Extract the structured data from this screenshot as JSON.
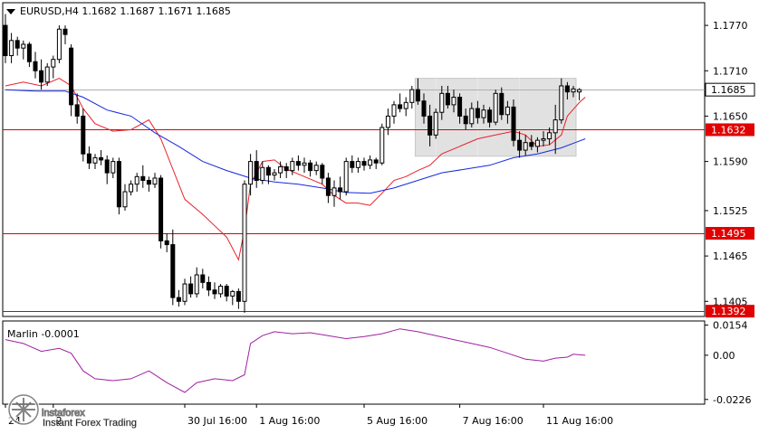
{
  "chart_data": {
    "type": "candlestick",
    "symbol_line": "EURUSD,H4  1.1682 1.1687 1.1671 1.1685",
    "price_axis": {
      "range": [
        1.1385,
        1.18
      ],
      "ticks": [
        "1.1770",
        "1.1710",
        "1.1650",
        "1.1590",
        "1.1525",
        "1.1465",
        "1.1405"
      ]
    },
    "levels": [
      {
        "value": 1.1632,
        "label": "1.1632",
        "color": "#e00000"
      },
      {
        "value": 1.1495,
        "label": "1.1495",
        "color": "#e00000"
      },
      {
        "value": 1.1392,
        "label": "1.1392",
        "color": "#e00000"
      }
    ],
    "current_price": {
      "value": 1.1685,
      "label": "1.1685"
    },
    "range_box": {
      "from_bar": 69,
      "to_bar": 95,
      "top": 1.17,
      "bottom": 1.1597,
      "color": "#d0d0d0"
    },
    "candles": [
      [
        1.177,
        1.1785,
        1.172,
        1.173
      ],
      [
        1.173,
        1.176,
        1.172,
        1.175
      ],
      [
        1.175,
        1.1755,
        1.173,
        1.174
      ],
      [
        1.174,
        1.175,
        1.1725,
        1.1745
      ],
      [
        1.1745,
        1.1748,
        1.1715,
        1.1722
      ],
      [
        1.1722,
        1.1735,
        1.17,
        1.171
      ],
      [
        1.171,
        1.1725,
        1.1685,
        1.1695
      ],
      [
        1.1695,
        1.172,
        1.169,
        1.1715
      ],
      [
        1.1715,
        1.173,
        1.17,
        1.1725
      ],
      [
        1.1725,
        1.177,
        1.172,
        1.1765
      ],
      [
        1.1765,
        1.177,
        1.1745,
        1.1758
      ],
      [
        1.174,
        1.1745,
        1.165,
        1.1665
      ],
      [
        1.1665,
        1.168,
        1.164,
        1.165
      ],
      [
        1.165,
        1.166,
        1.159,
        1.16
      ],
      [
        1.16,
        1.161,
        1.158,
        1.1588
      ],
      [
        1.1588,
        1.16,
        1.158,
        1.1595
      ],
      [
        1.1595,
        1.1605,
        1.1585,
        1.1592
      ],
      [
        1.1592,
        1.1598,
        1.156,
        1.1575
      ],
      [
        1.1575,
        1.1595,
        1.1568,
        1.159
      ],
      [
        1.159,
        1.1595,
        1.152,
        1.153
      ],
      [
        1.153,
        1.156,
        1.1525,
        1.155
      ],
      [
        1.155,
        1.1565,
        1.1545,
        1.156
      ],
      [
        1.156,
        1.1575,
        1.155,
        1.157
      ],
      [
        1.157,
        1.1585,
        1.1555,
        1.1565
      ],
      [
        1.1565,
        1.157,
        1.155,
        1.156
      ],
      [
        1.156,
        1.1575,
        1.1555,
        1.1568
      ],
      [
        1.1568,
        1.1572,
        1.1475,
        1.1485
      ],
      [
        1.1485,
        1.1495,
        1.147,
        1.148
      ],
      [
        1.148,
        1.15,
        1.14,
        1.141
      ],
      [
        1.141,
        1.142,
        1.1398,
        1.1405
      ],
      [
        1.1405,
        1.1435,
        1.14,
        1.1428
      ],
      [
        1.1428,
        1.1438,
        1.141,
        1.1415
      ],
      [
        1.1415,
        1.145,
        1.141,
        1.144
      ],
      [
        1.144,
        1.1448,
        1.1422,
        1.143
      ],
      [
        1.143,
        1.1438,
        1.1412,
        1.142
      ],
      [
        1.142,
        1.143,
        1.1408,
        1.1415
      ],
      [
        1.1415,
        1.1428,
        1.141,
        1.1425
      ],
      [
        1.1425,
        1.1428,
        1.1405,
        1.1412
      ],
      [
        1.1412,
        1.142,
        1.14,
        1.1418
      ],
      [
        1.1418,
        1.1422,
        1.1395,
        1.1405
      ],
      [
        1.1405,
        1.1565,
        1.139,
        1.156
      ],
      [
        1.156,
        1.16,
        1.1545,
        1.159
      ],
      [
        1.159,
        1.1605,
        1.1555,
        1.1565
      ],
      [
        1.1565,
        1.159,
        1.156,
        1.1582
      ],
      [
        1.1582,
        1.1585,
        1.156,
        1.1572
      ],
      [
        1.1572,
        1.158,
        1.1565,
        1.1575
      ],
      [
        1.1575,
        1.159,
        1.1568,
        1.1583
      ],
      [
        1.1583,
        1.1588,
        1.1568,
        1.1578
      ],
      [
        1.1578,
        1.1595,
        1.1572,
        1.159
      ],
      [
        1.159,
        1.1598,
        1.1578,
        1.1585
      ],
      [
        1.1585,
        1.1595,
        1.1575,
        1.1588
      ],
      [
        1.1588,
        1.1592,
        1.157,
        1.1578
      ],
      [
        1.1578,
        1.159,
        1.1572,
        1.1585
      ],
      [
        1.1585,
        1.1588,
        1.156,
        1.1568
      ],
      [
        1.1568,
        1.1575,
        1.1535,
        1.1545
      ],
      [
        1.1545,
        1.1565,
        1.153,
        1.1555
      ],
      [
        1.1555,
        1.157,
        1.154,
        1.155
      ],
      [
        1.155,
        1.1595,
        1.1545,
        1.159
      ],
      [
        1.159,
        1.1598,
        1.1575,
        1.1582
      ],
      [
        1.1582,
        1.1595,
        1.1575,
        1.159
      ],
      [
        1.159,
        1.1595,
        1.1578,
        1.1585
      ],
      [
        1.1585,
        1.1598,
        1.158,
        1.1592
      ],
      [
        1.1592,
        1.1595,
        1.158,
        1.1588
      ],
      [
        1.1588,
        1.164,
        1.1585,
        1.1635
      ],
      [
        1.1635,
        1.166,
        1.1625,
        1.165
      ],
      [
        1.165,
        1.167,
        1.164,
        1.1665
      ],
      [
        1.1665,
        1.168,
        1.1655,
        1.166
      ],
      [
        1.166,
        1.1675,
        1.165,
        1.1668
      ],
      [
        1.1668,
        1.169,
        1.166,
        1.1685
      ],
      [
        1.1685,
        1.17,
        1.1665,
        1.167
      ],
      [
        1.167,
        1.168,
        1.164,
        1.165
      ],
      [
        1.165,
        1.1665,
        1.161,
        1.1625
      ],
      [
        1.1625,
        1.166,
        1.162,
        1.1655
      ],
      [
        1.1655,
        1.169,
        1.1645,
        1.168
      ],
      [
        1.168,
        1.169,
        1.166,
        1.1665
      ],
      [
        1.1665,
        1.1685,
        1.1655,
        1.1675
      ],
      [
        1.1675,
        1.168,
        1.164,
        1.165
      ],
      [
        1.165,
        1.166,
        1.1632,
        1.164
      ],
      [
        1.164,
        1.1668,
        1.1635,
        1.166
      ],
      [
        1.166,
        1.167,
        1.164,
        1.1648
      ],
      [
        1.1648,
        1.1665,
        1.164,
        1.1658
      ],
      [
        1.1658,
        1.1662,
        1.1635,
        1.1642
      ],
      [
        1.1642,
        1.1685,
        1.1638,
        1.168
      ],
      [
        1.168,
        1.1688,
        1.1645,
        1.1652
      ],
      [
        1.1652,
        1.167,
        1.164,
        1.1662
      ],
      [
        1.1662,
        1.1672,
        1.161,
        1.1618
      ],
      [
        1.1618,
        1.163,
        1.1595,
        1.1605
      ],
      [
        1.1605,
        1.1625,
        1.1598,
        1.1615
      ],
      [
        1.1615,
        1.1625,
        1.1605,
        1.161
      ],
      [
        1.161,
        1.1622,
        1.1602,
        1.1618
      ],
      [
        1.1618,
        1.163,
        1.161,
        1.162
      ],
      [
        1.162,
        1.1635,
        1.1612,
        1.1628
      ],
      [
        1.1628,
        1.1665,
        1.16,
        1.1645
      ],
      [
        1.1645,
        1.17,
        1.164,
        1.169
      ],
      [
        1.169,
        1.1695,
        1.1672,
        1.1682
      ],
      [
        1.1682,
        1.169,
        1.1675,
        1.1686
      ],
      [
        1.1682,
        1.1687,
        1.1671,
        1.1685
      ]
    ],
    "ma_fast": {
      "color": "#e8202a",
      "points": [
        [
          0,
          1.169
        ],
        [
          3,
          1.1695
        ],
        [
          6,
          1.169
        ],
        [
          9,
          1.17
        ],
        [
          11,
          1.169
        ],
        [
          13,
          1.166
        ],
        [
          15,
          1.164
        ],
        [
          18,
          1.163
        ],
        [
          21,
          1.1632
        ],
        [
          24,
          1.1645
        ],
        [
          26,
          1.162
        ],
        [
          28,
          1.158
        ],
        [
          30,
          1.154
        ],
        [
          33,
          1.152
        ],
        [
          35,
          1.1505
        ],
        [
          37,
          1.149
        ],
        [
          39,
          1.146
        ],
        [
          40,
          1.15
        ],
        [
          41,
          1.156
        ],
        [
          43,
          1.159
        ],
        [
          45,
          1.1592
        ],
        [
          47,
          1.158
        ],
        [
          50,
          1.157
        ],
        [
          53,
          1.156
        ],
        [
          55,
          1.1545
        ],
        [
          57,
          1.1535
        ],
        [
          59,
          1.1535
        ],
        [
          61,
          1.1532
        ],
        [
          63,
          1.1548
        ],
        [
          65,
          1.1565
        ],
        [
          67,
          1.157
        ],
        [
          69,
          1.1578
        ],
        [
          71,
          1.1585
        ],
        [
          73,
          1.16
        ],
        [
          76,
          1.161
        ],
        [
          79,
          1.162
        ],
        [
          82,
          1.1625
        ],
        [
          85,
          1.163
        ],
        [
          87,
          1.1625
        ],
        [
          89,
          1.161
        ],
        [
          91,
          1.1612
        ],
        [
          93,
          1.1625
        ],
        [
          94,
          1.165
        ],
        [
          96,
          1.1668
        ],
        [
          97,
          1.1675
        ]
      ]
    },
    "ma_slow": {
      "color": "#1428e0",
      "points": [
        [
          0,
          1.1685
        ],
        [
          5,
          1.1683
        ],
        [
          10,
          1.1683
        ],
        [
          13,
          1.1675
        ],
        [
          17,
          1.1658
        ],
        [
          21,
          1.165
        ],
        [
          25,
          1.1628
        ],
        [
          29,
          1.161
        ],
        [
          33,
          1.159
        ],
        [
          37,
          1.1578
        ],
        [
          41,
          1.1568
        ],
        [
          45,
          1.1563
        ],
        [
          49,
          1.156
        ],
        [
          53,
          1.1555
        ],
        [
          57,
          1.1549
        ],
        [
          61,
          1.1548
        ],
        [
          65,
          1.1555
        ],
        [
          69,
          1.1565
        ],
        [
          73,
          1.1575
        ],
        [
          77,
          1.158
        ],
        [
          81,
          1.1585
        ],
        [
          85,
          1.1595
        ],
        [
          89,
          1.16
        ],
        [
          93,
          1.1608
        ],
        [
          97,
          1.162
        ]
      ]
    },
    "x_labels": [
      {
        "bar": 0,
        "label": "24"
      },
      {
        "bar": 8,
        "label": "2"
      },
      {
        "bar": 30,
        "label": "30 Jul 16:00"
      },
      {
        "bar": 42,
        "label": "1 Aug 16:00"
      },
      {
        "bar": 60,
        "label": "5 Aug 16:00"
      },
      {
        "bar": 76,
        "label": "7 Aug 16:00"
      },
      {
        "bar": 90,
        "label": "11 Aug 16:00"
      }
    ],
    "indicator": {
      "name_line": "Marlin -0.0001",
      "range": [
        -0.025,
        0.0175
      ],
      "ticks": [
        {
          "value": 0.0154,
          "label": "0.0154"
        },
        {
          "value": 0.0,
          "label": "0.00"
        },
        {
          "value": -0.0226,
          "label": "-0.0226"
        }
      ],
      "color": "#a020a0",
      "points": [
        [
          0,
          0.008
        ],
        [
          3,
          0.006
        ],
        [
          6,
          0.002
        ],
        [
          9,
          0.0035
        ],
        [
          11,
          0.001
        ],
        [
          13,
          -0.008
        ],
        [
          15,
          -0.012
        ],
        [
          18,
          -0.013
        ],
        [
          21,
          -0.012
        ],
        [
          24,
          -0.008
        ],
        [
          27,
          -0.014
        ],
        [
          30,
          -0.019
        ],
        [
          32,
          -0.014
        ],
        [
          35,
          -0.012
        ],
        [
          38,
          -0.013
        ],
        [
          40,
          -0.01
        ],
        [
          41,
          0.006
        ],
        [
          43,
          0.01
        ],
        [
          45,
          0.012
        ],
        [
          48,
          0.011
        ],
        [
          51,
          0.0115
        ],
        [
          54,
          0.01
        ],
        [
          57,
          0.0085
        ],
        [
          60,
          0.0095
        ],
        [
          63,
          0.011
        ],
        [
          66,
          0.0135
        ],
        [
          69,
          0.012
        ],
        [
          72,
          0.01
        ],
        [
          75,
          0.008
        ],
        [
          78,
          0.006
        ],
        [
          81,
          0.004
        ],
        [
          84,
          0.001
        ],
        [
          87,
          -0.002
        ],
        [
          90,
          -0.003
        ],
        [
          92,
          -0.0015
        ],
        [
          94,
          -0.001
        ],
        [
          95,
          0.0005
        ],
        [
          97,
          0.0
        ]
      ]
    },
    "grid": false,
    "bg_color": "#ffffff",
    "candle_color": "#000000"
  },
  "watermark": {
    "brand": "instaforex",
    "tagline": "Instant Forex Trading",
    "icon": "instaforex-logo-icon"
  },
  "menu_icon": "triangle-down-icon"
}
